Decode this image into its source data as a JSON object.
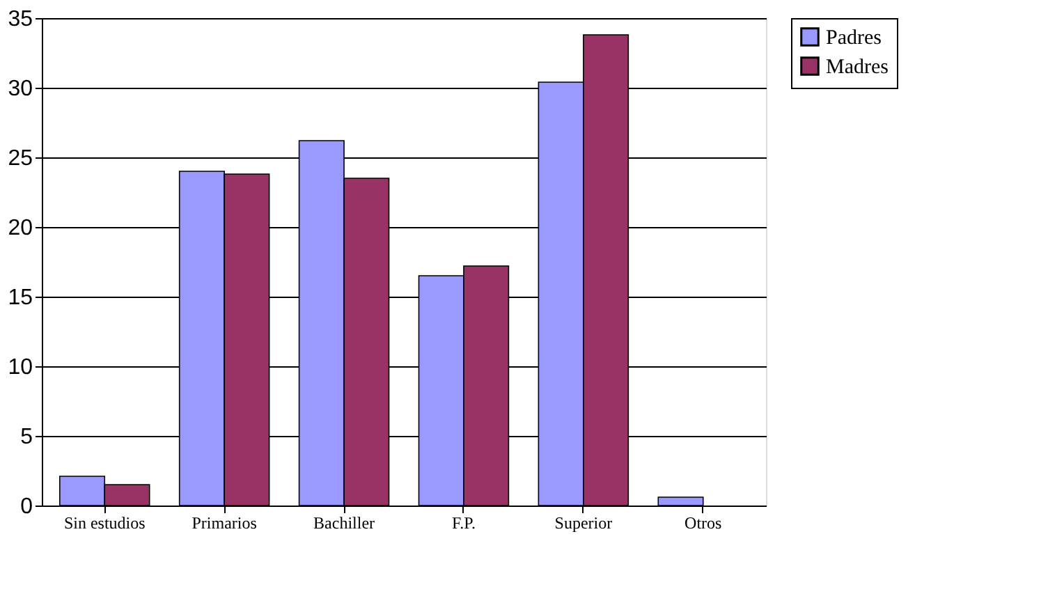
{
  "chart_data": {
    "type": "bar",
    "categories": [
      "Sin estudios",
      "Primarios",
      "Bachiller",
      "F.P.",
      "Superior",
      "Otros"
    ],
    "series": [
      {
        "name": "Padres",
        "color": "#9999ff",
        "values": [
          2.1,
          24,
          26.2,
          16.5,
          30.4,
          0.6
        ]
      },
      {
        "name": "Madres",
        "color": "#993366",
        "values": [
          1.5,
          23.8,
          23.5,
          17.2,
          33.8,
          null
        ]
      }
    ],
    "ylim": [
      0,
      35
    ],
    "yticks": [
      0,
      5,
      10,
      15,
      20,
      25,
      30,
      35
    ],
    "grid": "y",
    "legend": "right"
  }
}
